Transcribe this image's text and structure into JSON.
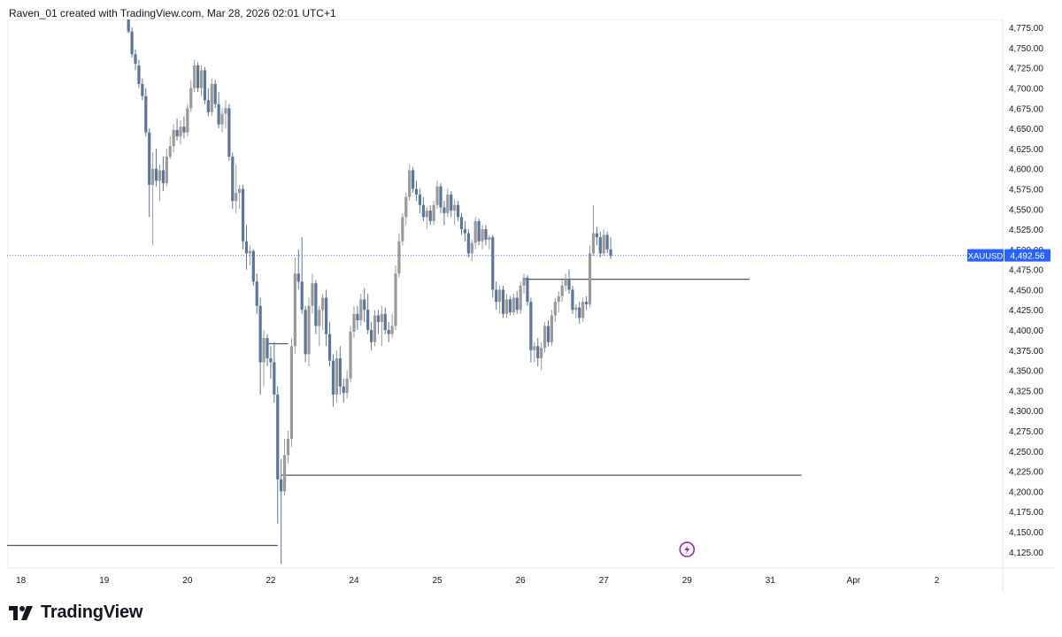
{
  "header": {
    "text": "Raven_01 created with TradingView.com, Mar 28, 2026 02:01 UTC+1"
  },
  "footer": {
    "brand": "TradingView",
    "logo_icon": "tradingview-logo-icon"
  },
  "colors": {
    "down_candle": "#5b7697",
    "up_candle": "#9a9a9a",
    "level_line": "#555555",
    "price_line": "#2962ff",
    "price_tag": "#2962ff",
    "alert_icon": "#9c27b0",
    "grid": "#f0f3fa"
  },
  "alert": {
    "icon": "lightning-alert-icon"
  },
  "chart_data": {
    "type": "candlestick",
    "symbol": "XAUUSD",
    "last_price": 4492.56,
    "last_price_label": "4,492.56",
    "ylim": [
      4105,
      4785
    ],
    "y_ticks": [
      {
        "v": 4775,
        "label": "4,775.00"
      },
      {
        "v": 4750,
        "label": "4,750.00"
      },
      {
        "v": 4725,
        "label": "4,725.00"
      },
      {
        "v": 4700,
        "label": "4,700.00"
      },
      {
        "v": 4675,
        "label": "4,675.00"
      },
      {
        "v": 4650,
        "label": "4,650.00"
      },
      {
        "v": 4625,
        "label": "4,625.00"
      },
      {
        "v": 4600,
        "label": "4,600.00"
      },
      {
        "v": 4575,
        "label": "4,575.00"
      },
      {
        "v": 4550,
        "label": "4,550.00"
      },
      {
        "v": 4525,
        "label": "4,525.00"
      },
      {
        "v": 4500,
        "label": "4,500.00"
      },
      {
        "v": 4475,
        "label": "4,475.00"
      },
      {
        "v": 4450,
        "label": "4,450.00"
      },
      {
        "v": 4425,
        "label": "4,425.00"
      },
      {
        "v": 4400,
        "label": "4,400.00"
      },
      {
        "v": 4375,
        "label": "4,375.00"
      },
      {
        "v": 4350,
        "label": "4,350.00"
      },
      {
        "v": 4325,
        "label": "4,325.00"
      },
      {
        "v": 4300,
        "label": "4,300.00"
      },
      {
        "v": 4275,
        "label": "4,275.00"
      },
      {
        "v": 4250,
        "label": "4,250.00"
      },
      {
        "v": 4225,
        "label": "4,225.00"
      },
      {
        "v": 4200,
        "label": "4,200.00"
      },
      {
        "v": 4175,
        "label": "4,175.00"
      },
      {
        "v": 4150,
        "label": "4,150.00"
      },
      {
        "v": 4125,
        "label": "4,125.00"
      }
    ],
    "x_ticks": [
      {
        "label": "18",
        "t": 0
      },
      {
        "label": "19",
        "t": 24
      },
      {
        "label": "20",
        "t": 48
      },
      {
        "label": "22",
        "t": 72
      },
      {
        "label": "24",
        "t": 96
      },
      {
        "label": "25",
        "t": 120
      },
      {
        "label": "26",
        "t": 144
      },
      {
        "label": "27",
        "t": 168
      },
      {
        "label": "29",
        "t": 192
      },
      {
        "label": "31",
        "t": 216
      },
      {
        "label": "Apr",
        "t": 240
      },
      {
        "label": "2",
        "t": 264
      }
    ],
    "xlim": [
      -4,
      283
    ],
    "candles": [
      {
        "t": 31,
        "o": 4785,
        "h": 4790,
        "l": 4768,
        "c": 4770
      },
      {
        "t": 32,
        "o": 4770,
        "h": 4775,
        "l": 4738,
        "c": 4742
      },
      {
        "t": 33,
        "o": 4742,
        "h": 4748,
        "l": 4722,
        "c": 4730
      },
      {
        "t": 34,
        "o": 4728,
        "h": 4735,
        "l": 4700,
        "c": 4705
      },
      {
        "t": 35,
        "o": 4705,
        "h": 4712,
        "l": 4685,
        "c": 4690
      },
      {
        "t": 36,
        "o": 4690,
        "h": 4700,
        "l": 4640,
        "c": 4645
      },
      {
        "t": 37,
        "o": 4645,
        "h": 4650,
        "l": 4540,
        "c": 4580
      },
      {
        "t": 38,
        "o": 4580,
        "h": 4620,
        "l": 4505,
        "c": 4600
      },
      {
        "t": 39,
        "o": 4600,
        "h": 4625,
        "l": 4578,
        "c": 4585
      },
      {
        "t": 40,
        "o": 4585,
        "h": 4605,
        "l": 4560,
        "c": 4598
      },
      {
        "t": 41,
        "o": 4598,
        "h": 4615,
        "l": 4572,
        "c": 4582
      },
      {
        "t": 42,
        "o": 4582,
        "h": 4625,
        "l": 4578,
        "c": 4615
      },
      {
        "t": 43,
        "o": 4615,
        "h": 4640,
        "l": 4612,
        "c": 4628
      },
      {
        "t": 44,
        "o": 4628,
        "h": 4655,
        "l": 4620,
        "c": 4648
      },
      {
        "t": 45,
        "o": 4648,
        "h": 4662,
        "l": 4635,
        "c": 4640
      },
      {
        "t": 46,
        "o": 4640,
        "h": 4660,
        "l": 4630,
        "c": 4652
      },
      {
        "t": 47,
        "o": 4652,
        "h": 4665,
        "l": 4638,
        "c": 4645
      },
      {
        "t": 48,
        "o": 4645,
        "h": 4680,
        "l": 4640,
        "c": 4675
      },
      {
        "t": 49,
        "o": 4675,
        "h": 4710,
        "l": 4670,
        "c": 4700
      },
      {
        "t": 50,
        "o": 4700,
        "h": 4735,
        "l": 4695,
        "c": 4728
      },
      {
        "t": 51,
        "o": 4728,
        "h": 4732,
        "l": 4695,
        "c": 4700
      },
      {
        "t": 52,
        "o": 4700,
        "h": 4728,
        "l": 4690,
        "c": 4722
      },
      {
        "t": 53,
        "o": 4722,
        "h": 4726,
        "l": 4680,
        "c": 4685
      },
      {
        "t": 54,
        "o": 4685,
        "h": 4700,
        "l": 4665,
        "c": 4670
      },
      {
        "t": 55,
        "o": 4670,
        "h": 4712,
        "l": 4665,
        "c": 4705
      },
      {
        "t": 56,
        "o": 4705,
        "h": 4710,
        "l": 4675,
        "c": 4680
      },
      {
        "t": 57,
        "o": 4680,
        "h": 4695,
        "l": 4650,
        "c": 4655
      },
      {
        "t": 58,
        "o": 4655,
        "h": 4675,
        "l": 4645,
        "c": 4668
      },
      {
        "t": 59,
        "o": 4668,
        "h": 4685,
        "l": 4650,
        "c": 4675
      },
      {
        "t": 60,
        "o": 4675,
        "h": 4680,
        "l": 4610,
        "c": 4615
      },
      {
        "t": 61,
        "o": 4615,
        "h": 4620,
        "l": 4550,
        "c": 4560
      },
      {
        "t": 62,
        "o": 4560,
        "h": 4605,
        "l": 4545,
        "c": 4570
      },
      {
        "t": 63,
        "o": 4570,
        "h": 4580,
        "l": 4550,
        "c": 4575
      },
      {
        "t": 64,
        "o": 4575,
        "h": 4580,
        "l": 4500,
        "c": 4510
      },
      {
        "t": 65,
        "o": 4510,
        "h": 4530,
        "l": 4475,
        "c": 4495
      },
      {
        "t": 66,
        "o": 4495,
        "h": 4505,
        "l": 4480,
        "c": 4498
      },
      {
        "t": 67,
        "o": 4498,
        "h": 4500,
        "l": 4455,
        "c": 4460
      },
      {
        "t": 68,
        "o": 4460,
        "h": 4470,
        "l": 4420,
        "c": 4430
      },
      {
        "t": 69,
        "o": 4430,
        "h": 4440,
        "l": 4320,
        "c": 4360
      },
      {
        "t": 70,
        "o": 4360,
        "h": 4400,
        "l": 4330,
        "c": 4390
      },
      {
        "t": 71,
        "o": 4390,
        "h": 4395,
        "l": 4355,
        "c": 4365
      },
      {
        "t": 72,
        "o": 4365,
        "h": 4380,
        "l": 4340,
        "c": 4360
      },
      {
        "t": 73,
        "o": 4360,
        "h": 4385,
        "l": 4310,
        "c": 4320
      },
      {
        "t": 74,
        "o": 4320,
        "h": 4330,
        "l": 4160,
        "c": 4215
      },
      {
        "t": 75,
        "o": 4215,
        "h": 4240,
        "l": 4110,
        "c": 4200
      },
      {
        "t": 76,
        "o": 4200,
        "h": 4265,
        "l": 4195,
        "c": 4245
      },
      {
        "t": 77,
        "o": 4245,
        "h": 4275,
        "l": 4235,
        "c": 4265
      },
      {
        "t": 78,
        "o": 4265,
        "h": 4390,
        "l": 4255,
        "c": 4380
      },
      {
        "t": 79,
        "o": 4380,
        "h": 4490,
        "l": 4370,
        "c": 4470
      },
      {
        "t": 80,
        "o": 4470,
        "h": 4500,
        "l": 4450,
        "c": 4460
      },
      {
        "t": 81,
        "o": 4460,
        "h": 4515,
        "l": 4420,
        "c": 4425
      },
      {
        "t": 82,
        "o": 4425,
        "h": 4430,
        "l": 4360,
        "c": 4370
      },
      {
        "t": 83,
        "o": 4370,
        "h": 4440,
        "l": 4355,
        "c": 4430
      },
      {
        "t": 84,
        "o": 4430,
        "h": 4470,
        "l": 4420,
        "c": 4458
      },
      {
        "t": 85,
        "o": 4458,
        "h": 4462,
        "l": 4395,
        "c": 4405
      },
      {
        "t": 86,
        "o": 4405,
        "h": 4430,
        "l": 4380,
        "c": 4425
      },
      {
        "t": 87,
        "o": 4425,
        "h": 4445,
        "l": 4400,
        "c": 4440
      },
      {
        "t": 88,
        "o": 4440,
        "h": 4450,
        "l": 4380,
        "c": 4395
      },
      {
        "t": 89,
        "o": 4395,
        "h": 4410,
        "l": 4355,
        "c": 4362
      },
      {
        "t": 90,
        "o": 4362,
        "h": 4370,
        "l": 4305,
        "c": 4320
      },
      {
        "t": 91,
        "o": 4320,
        "h": 4375,
        "l": 4310,
        "c": 4365
      },
      {
        "t": 92,
        "o": 4365,
        "h": 4380,
        "l": 4320,
        "c": 4330
      },
      {
        "t": 93,
        "o": 4330,
        "h": 4340,
        "l": 4310,
        "c": 4322
      },
      {
        "t": 94,
        "o": 4322,
        "h": 4350,
        "l": 4315,
        "c": 4340
      },
      {
        "t": 95,
        "o": 4340,
        "h": 4405,
        "l": 4335,
        "c": 4398
      },
      {
        "t": 96,
        "o": 4398,
        "h": 4430,
        "l": 4390,
        "c": 4420
      },
      {
        "t": 97,
        "o": 4420,
        "h": 4430,
        "l": 4400,
        "c": 4412
      },
      {
        "t": 98,
        "o": 4412,
        "h": 4445,
        "l": 4405,
        "c": 4438
      },
      {
        "t": 99,
        "o": 4438,
        "h": 4452,
        "l": 4410,
        "c": 4425
      },
      {
        "t": 100,
        "o": 4425,
        "h": 4445,
        "l": 4395,
        "c": 4400
      },
      {
        "t": 101,
        "o": 4400,
        "h": 4410,
        "l": 4375,
        "c": 4385
      },
      {
        "t": 102,
        "o": 4385,
        "h": 4425,
        "l": 4380,
        "c": 4418
      },
      {
        "t": 103,
        "o": 4418,
        "h": 4425,
        "l": 4395,
        "c": 4410
      },
      {
        "t": 104,
        "o": 4410,
        "h": 4430,
        "l": 4380,
        "c": 4420
      },
      {
        "t": 105,
        "o": 4420,
        "h": 4428,
        "l": 4395,
        "c": 4400
      },
      {
        "t": 106,
        "o": 4400,
        "h": 4410,
        "l": 4385,
        "c": 4395
      },
      {
        "t": 107,
        "o": 4395,
        "h": 4420,
        "l": 4390,
        "c": 4405
      },
      {
        "t": 108,
        "o": 4405,
        "h": 4480,
        "l": 4400,
        "c": 4470
      },
      {
        "t": 109,
        "o": 4470,
        "h": 4520,
        "l": 4465,
        "c": 4510
      },
      {
        "t": 110,
        "o": 4510,
        "h": 4545,
        "l": 4505,
        "c": 4540
      },
      {
        "t": 111,
        "o": 4540,
        "h": 4570,
        "l": 4530,
        "c": 4565
      },
      {
        "t": 112,
        "o": 4565,
        "h": 4605,
        "l": 4560,
        "c": 4598
      },
      {
        "t": 113,
        "o": 4598,
        "h": 4602,
        "l": 4570,
        "c": 4575
      },
      {
        "t": 114,
        "o": 4575,
        "h": 4585,
        "l": 4560,
        "c": 4568
      },
      {
        "t": 115,
        "o": 4568,
        "h": 4575,
        "l": 4545,
        "c": 4555
      },
      {
        "t": 116,
        "o": 4555,
        "h": 4565,
        "l": 4535,
        "c": 4540
      },
      {
        "t": 117,
        "o": 4540,
        "h": 4552,
        "l": 4525,
        "c": 4548
      },
      {
        "t": 118,
        "o": 4548,
        "h": 4555,
        "l": 4530,
        "c": 4535
      },
      {
        "t": 119,
        "o": 4535,
        "h": 4560,
        "l": 4530,
        "c": 4555
      },
      {
        "t": 120,
        "o": 4555,
        "h": 4585,
        "l": 4550,
        "c": 4578
      },
      {
        "t": 121,
        "o": 4578,
        "h": 4582,
        "l": 4545,
        "c": 4552
      },
      {
        "t": 122,
        "o": 4552,
        "h": 4560,
        "l": 4530,
        "c": 4545
      },
      {
        "t": 123,
        "o": 4545,
        "h": 4575,
        "l": 4540,
        "c": 4568
      },
      {
        "t": 124,
        "o": 4568,
        "h": 4572,
        "l": 4540,
        "c": 4548
      },
      {
        "t": 125,
        "o": 4548,
        "h": 4562,
        "l": 4530,
        "c": 4555
      },
      {
        "t": 126,
        "o": 4555,
        "h": 4560,
        "l": 4535,
        "c": 4540
      },
      {
        "t": 127,
        "o": 4540,
        "h": 4545,
        "l": 4518,
        "c": 4525
      },
      {
        "t": 128,
        "o": 4525,
        "h": 4535,
        "l": 4510,
        "c": 4520
      },
      {
        "t": 129,
        "o": 4520,
        "h": 4525,
        "l": 4490,
        "c": 4495
      },
      {
        "t": 130,
        "o": 4495,
        "h": 4512,
        "l": 4485,
        "c": 4508
      },
      {
        "t": 131,
        "o": 4508,
        "h": 4540,
        "l": 4500,
        "c": 4535
      },
      {
        "t": 132,
        "o": 4535,
        "h": 4538,
        "l": 4505,
        "c": 4510
      },
      {
        "t": 133,
        "o": 4510,
        "h": 4530,
        "l": 4500,
        "c": 4525
      },
      {
        "t": 134,
        "o": 4525,
        "h": 4530,
        "l": 4505,
        "c": 4512
      },
      {
        "t": 135,
        "o": 4512,
        "h": 4518,
        "l": 4500,
        "c": 4515
      },
      {
        "t": 136,
        "o": 4515,
        "h": 4518,
        "l": 4440,
        "c": 4450
      },
      {
        "t": 137,
        "o": 4450,
        "h": 4460,
        "l": 4425,
        "c": 4435
      },
      {
        "t": 138,
        "o": 4435,
        "h": 4455,
        "l": 4420,
        "c": 4450
      },
      {
        "t": 139,
        "o": 4450,
        "h": 4455,
        "l": 4415,
        "c": 4420
      },
      {
        "t": 140,
        "o": 4420,
        "h": 4445,
        "l": 4415,
        "c": 4438
      },
      {
        "t": 141,
        "o": 4438,
        "h": 4442,
        "l": 4418,
        "c": 4422
      },
      {
        "t": 142,
        "o": 4422,
        "h": 4445,
        "l": 4418,
        "c": 4440
      },
      {
        "t": 143,
        "o": 4440,
        "h": 4448,
        "l": 4420,
        "c": 4425
      },
      {
        "t": 144,
        "o": 4425,
        "h": 4460,
        "l": 4420,
        "c": 4455
      },
      {
        "t": 145,
        "o": 4455,
        "h": 4470,
        "l": 4445,
        "c": 4465
      },
      {
        "t": 146,
        "o": 4465,
        "h": 4468,
        "l": 4430,
        "c": 4435
      },
      {
        "t": 147,
        "o": 4435,
        "h": 4440,
        "l": 4360,
        "c": 4375
      },
      {
        "t": 148,
        "o": 4375,
        "h": 4385,
        "l": 4360,
        "c": 4380
      },
      {
        "t": 149,
        "o": 4380,
        "h": 4390,
        "l": 4355,
        "c": 4365
      },
      {
        "t": 150,
        "o": 4365,
        "h": 4385,
        "l": 4350,
        "c": 4378
      },
      {
        "t": 151,
        "o": 4378,
        "h": 4410,
        "l": 4372,
        "c": 4405
      },
      {
        "t": 152,
        "o": 4405,
        "h": 4412,
        "l": 4380,
        "c": 4385
      },
      {
        "t": 153,
        "o": 4385,
        "h": 4425,
        "l": 4380,
        "c": 4418
      },
      {
        "t": 154,
        "o": 4418,
        "h": 4440,
        "l": 4410,
        "c": 4435
      },
      {
        "t": 155,
        "o": 4435,
        "h": 4448,
        "l": 4422,
        "c": 4442
      },
      {
        "t": 156,
        "o": 4442,
        "h": 4462,
        "l": 4435,
        "c": 4455
      },
      {
        "t": 157,
        "o": 4455,
        "h": 4470,
        "l": 4448,
        "c": 4462
      },
      {
        "t": 158,
        "o": 4462,
        "h": 4475,
        "l": 4445,
        "c": 4450
      },
      {
        "t": 159,
        "o": 4450,
        "h": 4455,
        "l": 4420,
        "c": 4425
      },
      {
        "t": 160,
        "o": 4425,
        "h": 4432,
        "l": 4415,
        "c": 4428
      },
      {
        "t": 161,
        "o": 4428,
        "h": 4435,
        "l": 4408,
        "c": 4415
      },
      {
        "t": 162,
        "o": 4415,
        "h": 4440,
        "l": 4410,
        "c": 4435
      },
      {
        "t": 163,
        "o": 4435,
        "h": 4442,
        "l": 4425,
        "c": 4432
      },
      {
        "t": 164,
        "o": 4432,
        "h": 4505,
        "l": 4428,
        "c": 4495
      },
      {
        "t": 165,
        "o": 4495,
        "h": 4555,
        "l": 4492,
        "c": 4520
      },
      {
        "t": 166,
        "o": 4520,
        "h": 4528,
        "l": 4505,
        "c": 4515
      },
      {
        "t": 167,
        "o": 4515,
        "h": 4522,
        "l": 4490,
        "c": 4495
      },
      {
        "t": 168,
        "o": 4495,
        "h": 4525,
        "l": 4492,
        "c": 4518
      },
      {
        "t": 169,
        "o": 4518,
        "h": 4522,
        "l": 4495,
        "c": 4500
      },
      {
        "t": 170,
        "o": 4500,
        "h": 4515,
        "l": 4488,
        "c": 4492
      }
    ],
    "levels": [
      {
        "price": 4133,
        "t_start": -4,
        "t_end": 74
      },
      {
        "price": 4220,
        "t_start": 75,
        "t_end": 225
      },
      {
        "price": 4463,
        "t_start": 145,
        "t_end": 210
      },
      {
        "price": 4383,
        "t_start": 71,
        "t_end": 77
      }
    ],
    "alert_t": 192,
    "alert_price": 4128
  }
}
